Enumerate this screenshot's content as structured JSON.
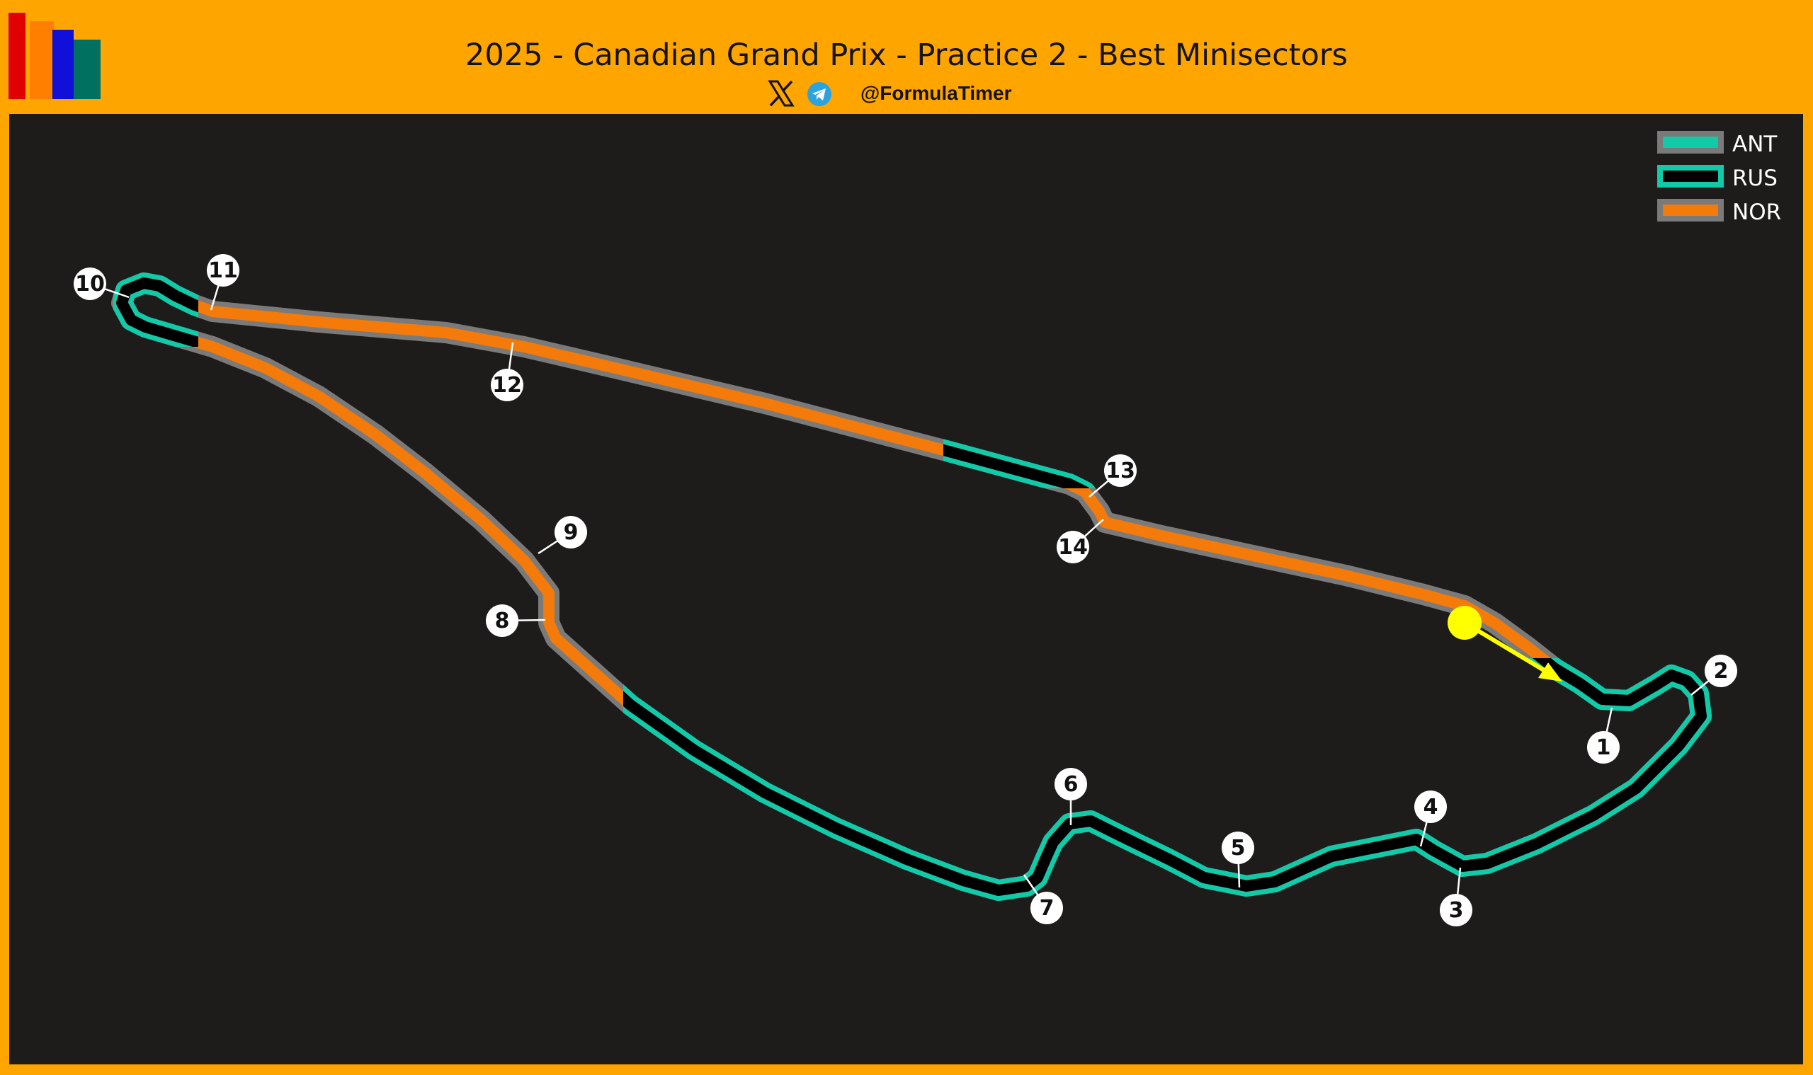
{
  "header": {
    "title": "2025 - Canadian Grand Prix - Practice 2 - Best Minisectors",
    "handle": "@FormulaTimer",
    "social_icons": [
      "x-icon",
      "telegram-icon"
    ]
  },
  "logo": {
    "icon": "bar-chart-logo",
    "bar_colors": [
      "#E00000",
      "#FF7F00",
      "#1010D8",
      "#007060"
    ]
  },
  "legend": {
    "placement": "top-right",
    "entries": [
      {
        "label": "ANT",
        "style": "solid",
        "color": "#12C9A8"
      },
      {
        "label": "RUS",
        "style": "outlined",
        "color": "#12C9A8"
      },
      {
        "label": "NOR",
        "style": "solid",
        "color": "#F47A0A"
      }
    ]
  },
  "colors": {
    "background": "#FFA500",
    "panel": "#1E1C1A",
    "track_outline": "#7A7A7A",
    "ANT": "#12C9A8",
    "RUS": "#12C9A8",
    "NOR": "#F47A0A",
    "start_marker": "#FFFF00"
  },
  "corners": [
    "1",
    "2",
    "3",
    "4",
    "5",
    "6",
    "7",
    "8",
    "9",
    "10",
    "11",
    "12",
    "13",
    "14"
  ],
  "start": {
    "marker": "yellow-dot",
    "direction": "arrow"
  }
}
